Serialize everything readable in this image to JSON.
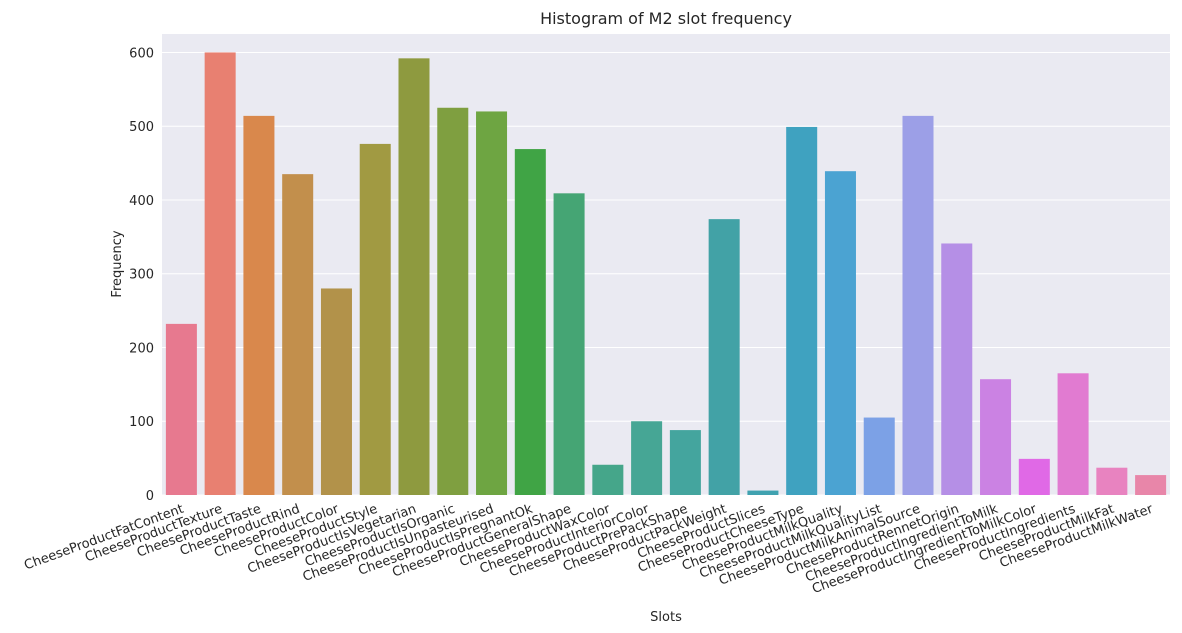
{
  "chart_data": {
    "type": "bar",
    "title": "Histogram of M2 slot frequency",
    "xlabel": "Slots",
    "ylabel": "Frequency",
    "ylim": [
      0,
      625
    ],
    "yticks": [
      0,
      100,
      200,
      300,
      400,
      500,
      600
    ],
    "grid": true,
    "categories": [
      "CheeseProductFatContent",
      "CheeseProductTexture",
      "CheeseProductTaste",
      "CheeseProductRind",
      "CheeseProductColor",
      "CheeseProductStyle",
      "CheeseProductIsVegetarian",
      "CheeseProductIsOrganic",
      "CheeseProductIsUnpasteurised",
      "CheeseProductIsPregnantOk",
      "CheeseProductGeneralShape",
      "CheeseProductWaxColor",
      "CheeseProductInteriorColor",
      "CheeseProductPrePackShape",
      "CheeseProductPackWeight",
      "CheeseProductSlices",
      "CheeseProductCheeseType",
      "CheeseProductMilkQuality",
      "CheeseProductMilkQualityList",
      "CheeseProductMilkAnimalSource",
      "CheeseProductRennetOrigin",
      "CheeseProductIngredientToMilk",
      "CheeseProductIngredientToMilkColor",
      "CheeseProductIngredients",
      "CheeseProductMilkFat",
      "CheeseProductMilkWater"
    ],
    "values": [
      232,
      600,
      514,
      435,
      280,
      476,
      592,
      525,
      520,
      469,
      409,
      41,
      100,
      88,
      374,
      6,
      499,
      439,
      105,
      514,
      341,
      157,
      49,
      165,
      37,
      27
    ],
    "colors": [
      "#e7798f",
      "#e88071",
      "#d9884c",
      "#c28f4c",
      "#b2924a",
      "#a19a42",
      "#8e9a3f",
      "#7f9f40",
      "#6ea542",
      "#40a445",
      "#45a574",
      "#45a68a",
      "#46a695",
      "#44a59e",
      "#42a2a6",
      "#40a2b0",
      "#3fa2c0",
      "#4ba3d2",
      "#7ca1e6",
      "#9c9fe7",
      "#b58fe6",
      "#cb82e3",
      "#e069e6",
      "#e17bd1",
      "#e883c0",
      "#e886a9"
    ]
  }
}
